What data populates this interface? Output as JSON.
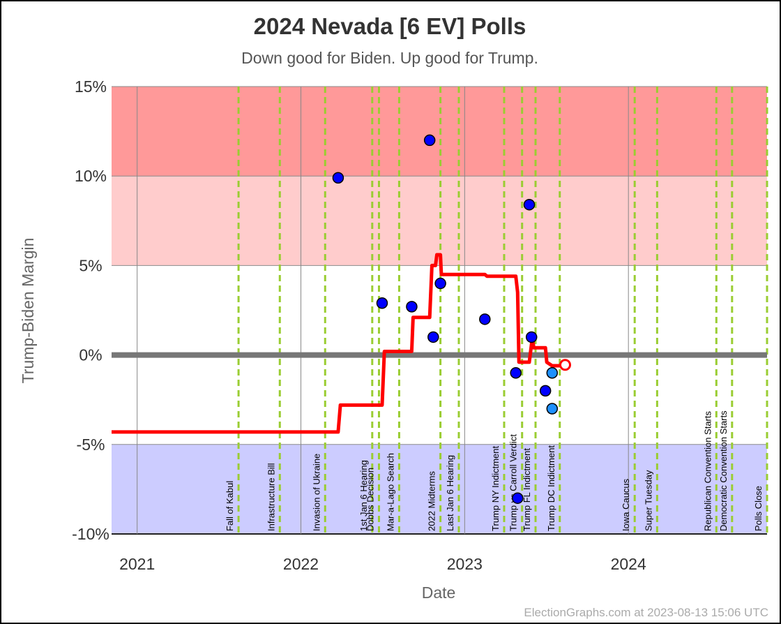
{
  "chart_data": {
    "type": "scatter",
    "title": "2024 Nevada [6 EV] Polls",
    "subtitle": "Down good for Biden. Up good for Trump.",
    "xlabel": "Date",
    "ylabel": "Trump-Biden Margin",
    "xlim": [
      "2020-11-05",
      "2024-11-05"
    ],
    "ylim": [
      -10,
      15
    ],
    "y_ticks": [
      {
        "value": 15,
        "label": "15%"
      },
      {
        "value": 10,
        "label": "10%"
      },
      {
        "value": 5,
        "label": "5%"
      },
      {
        "value": 0,
        "label": "0%"
      },
      {
        "value": -5,
        "label": "-5%"
      },
      {
        "value": -10,
        "label": "-10%"
      }
    ],
    "x_ticks": [
      {
        "date": "2021-01-01",
        "label": "2021"
      },
      {
        "date": "2022-01-01",
        "label": "2022"
      },
      {
        "date": "2023-01-01",
        "label": "2023"
      },
      {
        "date": "2024-01-01",
        "label": "2024"
      }
    ],
    "bands": [
      {
        "from": 10,
        "to": 15,
        "color": "#ff9999"
      },
      {
        "from": 5,
        "to": 10,
        "color": "#ffcccc"
      },
      {
        "from": -10,
        "to": -5,
        "color": "#ccccff"
      }
    ],
    "events": [
      {
        "date": "2021-08-15",
        "label": "Fall of Kabul"
      },
      {
        "date": "2021-11-15",
        "label": "Infrastructure Bill"
      },
      {
        "date": "2022-02-24",
        "label": "Invasion of Ukraine"
      },
      {
        "date": "2022-06-09",
        "label": "1st Jan 6 Hearing"
      },
      {
        "date": "2022-06-24",
        "label": "Dobbs Decision"
      },
      {
        "date": "2022-08-08",
        "label": "Mar-a-Lago Search"
      },
      {
        "date": "2022-11-08",
        "label": "2022 Midterms"
      },
      {
        "date": "2022-12-19",
        "label": "Last Jan 6 Hearing"
      },
      {
        "date": "2023-03-30",
        "label": "Trump NY Indictment"
      },
      {
        "date": "2023-05-09",
        "label": "Trump vs Carroll Verdict"
      },
      {
        "date": "2023-06-08",
        "label": "Trump FL Indictment"
      },
      {
        "date": "2023-08-01",
        "label": "Trump DC Indictment"
      },
      {
        "date": "2024-01-15",
        "label": "Iowa Caucus"
      },
      {
        "date": "2024-03-05",
        "label": "Super Tuesday"
      },
      {
        "date": "2024-07-15",
        "label": "Republican Convention Starts"
      },
      {
        "date": "2024-08-19",
        "label": "Democratic Convention Starts"
      },
      {
        "date": "2024-11-05",
        "label": "Polls Close"
      }
    ],
    "polls": [
      {
        "date": "2022-03-25",
        "margin": 9.9,
        "color": "#0000ff"
      },
      {
        "date": "2022-07-01",
        "margin": 2.9,
        "color": "#0000ff"
      },
      {
        "date": "2022-09-05",
        "margin": 2.7,
        "color": "#0000ff"
      },
      {
        "date": "2022-10-15",
        "margin": 12.0,
        "color": "#0000ff"
      },
      {
        "date": "2022-10-23",
        "margin": 1.0,
        "color": "#0000ff"
      },
      {
        "date": "2022-11-08",
        "margin": 4.0,
        "color": "#0000ff"
      },
      {
        "date": "2023-02-15",
        "margin": 2.0,
        "color": "#0000ff"
      },
      {
        "date": "2023-04-25",
        "margin": -1.0,
        "color": "#0000ff"
      },
      {
        "date": "2023-04-29",
        "margin": -8.0,
        "color": "#0000ff"
      },
      {
        "date": "2023-05-25",
        "margin": 8.4,
        "color": "#0000ff"
      },
      {
        "date": "2023-05-30",
        "margin": 1.0,
        "color": "#0000ff"
      },
      {
        "date": "2023-06-30",
        "margin": -2.0,
        "color": "#0000ff"
      },
      {
        "date": "2023-07-15",
        "margin": -1.0,
        "color": "#1e90ff"
      },
      {
        "date": "2023-07-15",
        "margin": -3.0,
        "color": "#1e90ff"
      }
    ],
    "average_line": {
      "color": "#ff0000",
      "points": [
        [
          "2020-11-05",
          -4.3
        ],
        [
          "2022-03-25",
          -4.3
        ],
        [
          "2022-03-30",
          -2.8
        ],
        [
          "2022-07-01",
          -2.8
        ],
        [
          "2022-07-06",
          0.2
        ],
        [
          "2022-09-05",
          0.2
        ],
        [
          "2022-09-08",
          2.1
        ],
        [
          "2022-10-15",
          2.1
        ],
        [
          "2022-10-20",
          5.0
        ],
        [
          "2022-10-28",
          5.0
        ],
        [
          "2022-10-31",
          5.6
        ],
        [
          "2022-11-08",
          5.6
        ],
        [
          "2022-11-10",
          4.5
        ],
        [
          "2023-02-15",
          4.5
        ],
        [
          "2023-02-20",
          4.4
        ],
        [
          "2023-04-25",
          4.4
        ],
        [
          "2023-04-29",
          3.5
        ],
        [
          "2023-05-02",
          -0.4
        ],
        [
          "2023-05-25",
          -0.4
        ],
        [
          "2023-06-01",
          1.0
        ],
        [
          "2023-06-04",
          0.4
        ],
        [
          "2023-06-30",
          0.4
        ],
        [
          "2023-07-03",
          -0.4
        ],
        [
          "2023-07-15",
          -0.6
        ],
        [
          "2023-08-13",
          -0.6
        ]
      ],
      "endpoint": {
        "date": "2023-08-13",
        "margin": -0.55
      }
    }
  },
  "footer": "ElectionGraphs.com at 2023-08-13 15:06 UTC"
}
